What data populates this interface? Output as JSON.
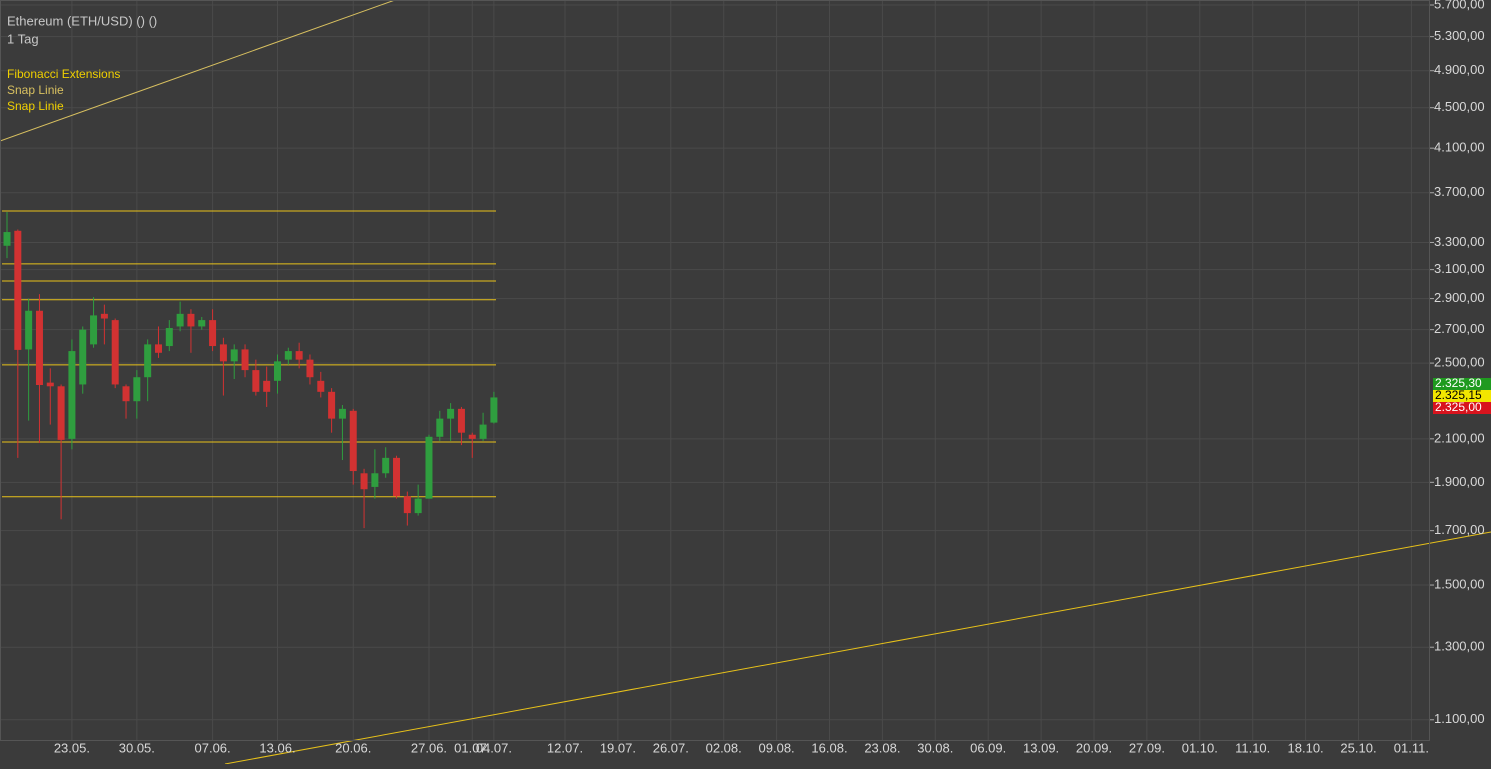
{
  "chart_data": {
    "type": "candlestick",
    "title": "Ethereum (ETH/USD) () ()",
    "subtitle": "1 Tag",
    "annotations": [
      "Fibonacci Extensions",
      "Snap Linie",
      "Snap Linie"
    ],
    "categories": [
      null,
      null,
      null,
      null,
      null,
      null,
      "23.05.",
      null,
      null,
      null,
      null,
      null,
      "30.05.",
      null,
      null,
      null,
      null,
      null,
      null,
      "07.06.",
      null,
      null,
      null,
      null,
      null,
      "13.06.",
      null,
      null,
      null,
      null,
      null,
      null,
      "20.06.",
      null,
      null,
      null,
      null,
      null,
      null,
      "27.06.",
      null,
      null,
      null,
      "01.07.",
      null,
      "04.07."
    ],
    "future_categories": [
      "12.07.",
      "19.07.",
      "26.07.",
      "02.08.",
      "09.08.",
      "16.08.",
      "23.08.",
      "30.08.",
      "06.09.",
      "13.09.",
      "20.09.",
      "27.09.",
      "01.10.",
      "11.10.",
      "18.10.",
      "25.10.",
      "01.11."
    ],
    "open": [
      3275,
      3390,
      2580,
      2820,
      2390,
      2370,
      2100,
      2380,
      2610,
      2800,
      2760,
      2370,
      2290,
      2420,
      2610,
      2600,
      2720,
      2800,
      2720,
      2760,
      2610,
      2510,
      2580,
      2460,
      2400,
      2400,
      2520,
      2570,
      2520,
      2400,
      2340,
      2200,
      2240,
      1940,
      1880,
      1940,
      2010,
      1840,
      1770,
      1830,
      2110,
      2200,
      2250,
      2120,
      2100,
      2180
    ],
    "high": [
      3540,
      3400,
      2900,
      2930,
      2470,
      2380,
      2640,
      2720,
      2910,
      2860,
      2770,
      2380,
      2460,
      2640,
      2720,
      2760,
      2880,
      2830,
      2780,
      2830,
      2650,
      2610,
      2610,
      2520,
      2480,
      2550,
      2590,
      2620,
      2550,
      2450,
      2360,
      2270,
      2250,
      1960,
      2050,
      2060,
      2020,
      1860,
      1890,
      2120,
      2240,
      2280,
      2260,
      2130,
      2230,
      2340
    ],
    "low": [
      3183,
      2010,
      2190,
      2080,
      2170,
      1745,
      2050,
      2330,
      2590,
      2610,
      2360,
      2200,
      2200,
      2290,
      2530,
      2570,
      2690,
      2560,
      2700,
      2570,
      2320,
      2410,
      2420,
      2320,
      2260,
      2330,
      2490,
      2470,
      2380,
      2310,
      2130,
      2000,
      1890,
      1710,
      1830,
      1920,
      1830,
      1720,
      1760,
      1830,
      2090,
      2090,
      2070,
      2010,
      2090,
      2175
    ],
    "close": [
      3380,
      2577,
      2820,
      2377,
      2370,
      2095,
      2570,
      2700,
      2790,
      2770,
      2380,
      2290,
      2420,
      2610,
      2560,
      2710,
      2800,
      2720,
      2760,
      2600,
      2510,
      2580,
      2460,
      2340,
      2340,
      2510,
      2570,
      2520,
      2420,
      2340,
      2200,
      2250,
      1950,
      1870,
      1940,
      2010,
      1840,
      1770,
      1830,
      2110,
      2200,
      2250,
      2130,
      2100,
      2170,
      2310
    ],
    "up_color": "#2f9e3f",
    "down_color": "#d23232",
    "levels": [
      3548,
      3141,
      3020,
      2892,
      2490,
      2085,
      1838
    ],
    "level_color": "#e8c21a",
    "log_scale": true,
    "grid": true,
    "ylim": [
      1050,
      5766
    ],
    "yticks": [
      {
        "value": 1100,
        "label": "1.100,00"
      },
      {
        "value": 1300,
        "label": "1.300,00"
      },
      {
        "value": 1500,
        "label": "1.500,00"
      },
      {
        "value": 1700,
        "label": "1.700,00"
      },
      {
        "value": 1900,
        "label": "1.900,00"
      },
      {
        "value": 2100,
        "label": "2.100,00"
      },
      {
        "value": 2500,
        "label": "2.500,00"
      },
      {
        "value": 2700,
        "label": "2.700,00"
      },
      {
        "value": 2900,
        "label": "2.900,00"
      },
      {
        "value": 3100,
        "label": "3.100,00"
      },
      {
        "value": 3300,
        "label": "3.300,00"
      },
      {
        "value": 3700,
        "label": "3.700,00"
      },
      {
        "value": 4100,
        "label": "4.100,00"
      },
      {
        "value": 4500,
        "label": "4.500,00"
      },
      {
        "value": 4900,
        "label": "4.900,00"
      },
      {
        "value": 5300,
        "label": "5.300,00"
      },
      {
        "value": 5700,
        "label": "5.700,00"
      }
    ],
    "price_tags": [
      {
        "label": "2.325,30",
        "color": "#1f9a1f"
      },
      {
        "label": "2.325,15",
        "color": "#f2e600"
      },
      {
        "label": "2.325,00",
        "color": "#d8141e"
      }
    ]
  }
}
